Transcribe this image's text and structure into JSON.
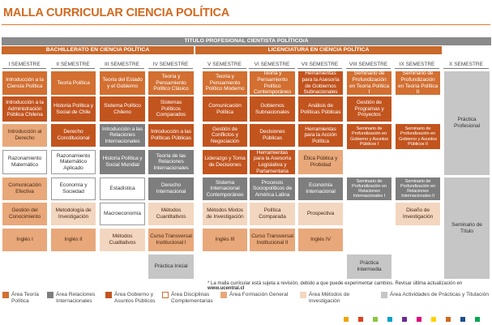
{
  "header": {
    "title": "MALLA CURRICULAR CIENCIA POLÍTICA"
  },
  "bars": {
    "top": "TITULO PROFESIONAL CIENTISTA POLÍTICO/A",
    "bachillerato": "BACHILLERATO EN CIENCIA POLÍTICA",
    "licenciatura": "LICENCIATURA EN CIENCIA POLÍTICA"
  },
  "semesters": [
    "I SEMESTRE",
    "II SEMESTRE",
    "III SEMESTRE",
    "IV SEMESTRE",
    "V SEMESTRE",
    "VI SEMESTRE",
    "VII SEMESTRE",
    "VIII SEMESTRE",
    "IX SEMESTRE",
    "X SEMESTRE"
  ],
  "courses": {
    "s1": [
      "Introducción a la Ciencia Política",
      "Introducción a la Administración Pública Chilena",
      "Introducción al Derecho",
      "Razonamiento Matemático",
      "Comunicación Efectiva",
      "Gestión del Conocimiento",
      "Inglés I"
    ],
    "s2": [
      "Teoría Política",
      "Historia Política y Social de Chile",
      "Derecho Constitucional",
      "Razonamiento Matemático Aplicado",
      "Economía y Sociedad",
      "Metodología de Investigación",
      "Inglés II"
    ],
    "s3": [
      "Teoría del Estado y el Gobierno",
      "Sistema Político Chileno",
      "Introducción a las Relaciones Internacionales",
      "Historia Política y Social Mundial",
      "Estadística",
      "Macroeconomía",
      "Métodos Cualitativos"
    ],
    "s4": [
      "Teoría y Pensamiento Político Clásico",
      "Sistemas Políticos Comparados",
      "Introducción a las Políticas Públicas",
      "Teoría de las Relaciones Internacionales",
      "Derecho Internacional",
      "Métodos Cuantitativos",
      "Curso Transversal Institucional I",
      "Práctica Inicial"
    ],
    "s5": [
      "Teoría y Pensamiento Político Moderno",
      "Comunicación Política",
      "Gestión de Conflictos y Negociación",
      "Liderazgo y Toma de Decisiones",
      "Sistema Internacional Contemporáneo",
      "Métodos Mixtos de Investigación",
      "Inglés III"
    ],
    "s6": [
      "Teoría y Pensamiento Político Contemporáneo",
      "Gobiernos Subnacionales",
      "Decisiones Públicas",
      "Herramientas para la Asesoría Legislativa y Parlamentaria",
      "Procesos Sociopolíticos de América Latina",
      "Política Comparada",
      "Curso Transversal Institucional II"
    ],
    "s7": [
      "Herramientas para la Asesoría de Gobiernos Subnacionales",
      "Análisis de Políticas Públicas",
      "Herramientas para la Acción Política",
      "Ética Pública y Probidad",
      "Economía Internacional",
      "Prospectiva",
      "Inglés IV"
    ],
    "s8": [
      "Seminario de Profundización en Teoría Política I",
      "Gestión de Programas y Proyectos",
      "Seminario de Profundización en Gobierno y Asuntos Públicos I",
      "Seminario de Profundización en Relaciones Internacionales I",
      "Práctica Intermedia"
    ],
    "s9": [
      "Seminario de Profundización en Teoría Política II",
      "Seminario de Profundización en Gobierno y Asuntos Públicos II",
      "Seminario de Profundización en Relaciones Internacionales II",
      "Diseño de Investigación"
    ],
    "s10": [
      "Práctica Profesional",
      "Seminario de Título"
    ]
  },
  "footnote": {
    "text": "* La malla curricular está sujeta a revisión, debido a que puede experimentar cambios. Revisar última actualización en ",
    "url": "www.ucentral.cl"
  },
  "legend": {
    "teoria": "Área Teoría Política",
    "relint": "Área Relaciones Internacionales",
    "gob": "Área Gobierno y Asuntos Públicos",
    "disc": "Área Disciplinas Complementarias",
    "formgen": "Área Formación General",
    "metinv": "Área Métodos de Investigación",
    "pract": "Área Actividades de Prácticas y Titulación"
  },
  "colors": {
    "teoria": "#d26f31",
    "relint": "#7e7e7e",
    "gob": "#c2541e",
    "formgen": "#e8a87a",
    "metinv": "#f3d6bf",
    "pract": "#c6c6c6",
    "brand_squares": [
      "#f0a500",
      "#e2401c",
      "#8dc63f",
      "#00a3c7",
      "#6b2c91",
      "#e2007a",
      "#ffd200",
      "#d2691e",
      "#1d4f91",
      "#00a651"
    ]
  }
}
